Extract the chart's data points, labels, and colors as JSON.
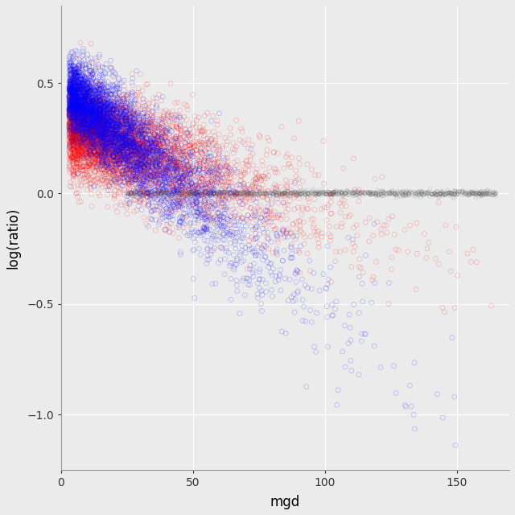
{
  "title": "",
  "xlabel": "mgd",
  "ylabel": "log(ratio)",
  "xlim": [
    0,
    170
  ],
  "ylim": [
    -1.25,
    0.85
  ],
  "xticks": [
    0,
    50,
    100,
    150
  ],
  "yticks": [
    -1.0,
    -0.5,
    0.0,
    0.5
  ],
  "background_color": "#EBEBEB",
  "grid_color": "#FFFFFF",
  "n_points_red": 5000,
  "n_points_blue": 5000,
  "n_points_gray": 1200,
  "red_color": "#FF0000",
  "blue_color": "#0000FF",
  "gray_color": "#555555",
  "alpha_red": 0.25,
  "alpha_blue": 0.25,
  "alpha_gray": 0.25,
  "marker_size": 18,
  "seed": 42,
  "slope_red": -0.00425,
  "intercept_red": 0.32,
  "spread_red_base": 0.1,
  "spread_red_scale": 0.0003,
  "slope_blue": -0.0095,
  "intercept_blue": 0.48,
  "spread_blue_base": 0.08,
  "spread_blue_scale": 0.0008,
  "x_exp_scale_red": 25,
  "x_exp_scale_blue": 22,
  "x_min": 3,
  "x_max": 165,
  "gray_x_min": 25,
  "gray_x_max": 165,
  "gray_spread": 0.006
}
